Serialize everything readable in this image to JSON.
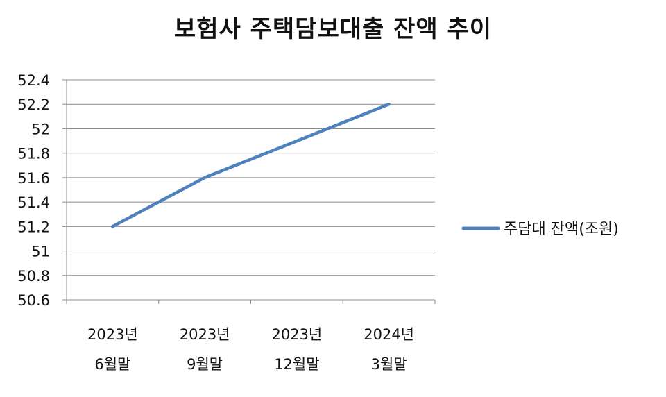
{
  "chart_data": {
    "type": "line",
    "title": "보험사 주택담보대출 잔액 추이",
    "categories": [
      [
        "2023년",
        "6월말"
      ],
      [
        "2023년",
        "9월말"
      ],
      [
        "2023년",
        "12월말"
      ],
      [
        "2024년",
        "3월말"
      ]
    ],
    "series": [
      {
        "name": "주담대 잔액(조원)",
        "values": [
          51.2,
          51.6,
          51.9,
          52.2
        ],
        "color": "#4F81BD"
      }
    ],
    "ylim": [
      50.6,
      52.4
    ],
    "yticks": [
      "50.6",
      "50.8",
      "51",
      "51.2",
      "51.4",
      "51.6",
      "51.8",
      "52",
      "52.2",
      "52.4"
    ],
    "grid": true,
    "legend": "right",
    "xlabel": "",
    "ylabel": ""
  }
}
